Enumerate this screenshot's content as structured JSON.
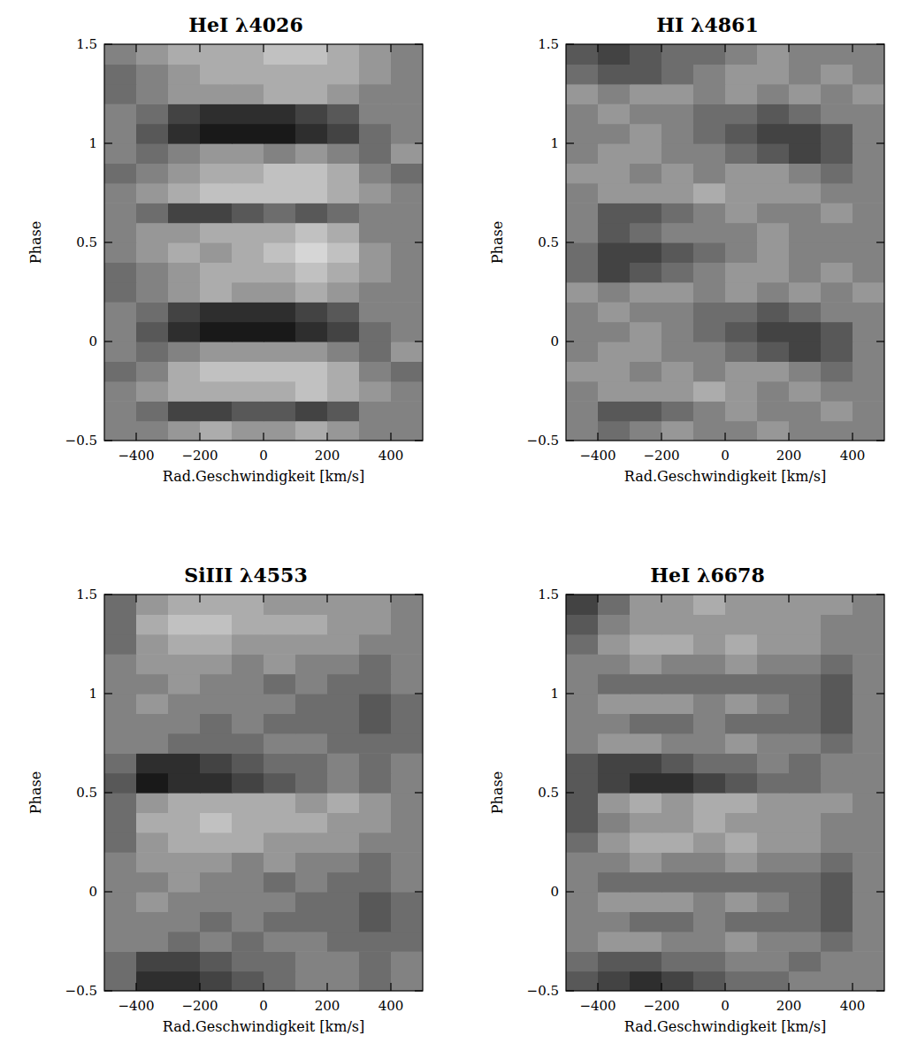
{
  "chart_data": [
    {
      "type": "heatmap",
      "title": "HeI λ4026",
      "x_label": "Rad.Geschwindigkeit [km/s]",
      "y_label": "Phase",
      "xlim": [
        -500,
        500
      ],
      "ylim": [
        -0.5,
        1.5
      ],
      "xticks": [
        {
          "value": -400,
          "label": "−400"
        },
        {
          "value": -200,
          "label": "−200"
        },
        0,
        200,
        400
      ],
      "yticks": [
        {
          "value": -0.5,
          "label": "−0.5"
        },
        0,
        0.5,
        1,
        1.5
      ],
      "x_bins": [
        -500,
        -400,
        -300,
        -200,
        -100,
        0,
        100,
        200,
        300,
        400,
        500
      ],
      "y_bins": [
        -0.5,
        -0.4,
        -0.3,
        -0.2,
        -0.1,
        0,
        0.1,
        0.2,
        0.3,
        0.4,
        0.5,
        0.6,
        0.7,
        0.8,
        0.9,
        1,
        1.1,
        1.2,
        1.3,
        1.4,
        1.5
      ],
      "zlim": [
        -5,
        5
      ],
      "cells": [
        [
          0,
          0,
          1,
          2,
          1,
          1,
          2,
          1,
          0,
          0
        ],
        [
          0,
          -1,
          -3,
          -3,
          -2,
          -2,
          -3,
          -2,
          0,
          0
        ],
        [
          0,
          1,
          2,
          2,
          2,
          2,
          3,
          2,
          1,
          0
        ],
        [
          -1,
          0,
          2,
          3,
          3,
          3,
          3,
          2,
          0,
          -1
        ],
        [
          0,
          -1,
          0,
          1,
          1,
          1,
          1,
          0,
          -1,
          1
        ],
        [
          0,
          -2,
          -4,
          -5,
          -5,
          -5,
          -4,
          -3,
          -1,
          0
        ],
        [
          0,
          -1,
          -3,
          -4,
          -4,
          -4,
          -3,
          -2,
          0,
          0
        ],
        [
          -1,
          0,
          1,
          2,
          1,
          1,
          2,
          1,
          0,
          0
        ],
        [
          -1,
          0,
          1,
          2,
          2,
          2,
          3,
          2,
          1,
          0
        ],
        [
          0,
          1,
          2,
          1,
          2,
          3,
          4,
          3,
          1,
          0
        ],
        [
          0,
          1,
          1,
          2,
          2,
          2,
          3,
          2,
          0,
          0
        ],
        [
          0,
          -1,
          -3,
          -3,
          -2,
          -1,
          -2,
          -1,
          0,
          0
        ],
        [
          0,
          1,
          2,
          3,
          3,
          3,
          3,
          2,
          1,
          0
        ],
        [
          -1,
          0,
          1,
          2,
          2,
          3,
          3,
          2,
          0,
          -1
        ],
        [
          0,
          -1,
          0,
          1,
          1,
          0,
          1,
          0,
          -1,
          1
        ],
        [
          0,
          -2,
          -4,
          -5,
          -5,
          -5,
          -4,
          -3,
          -1,
          0
        ],
        [
          0,
          -1,
          -3,
          -4,
          -4,
          -4,
          -3,
          -2,
          0,
          0
        ],
        [
          -1,
          0,
          1,
          1,
          1,
          2,
          2,
          1,
          0,
          0
        ],
        [
          -1,
          0,
          1,
          2,
          2,
          2,
          2,
          2,
          1,
          0
        ],
        [
          0,
          1,
          2,
          2,
          2,
          3,
          3,
          2,
          1,
          0
        ]
      ]
    },
    {
      "type": "heatmap",
      "title": "HI λ4861",
      "x_label": "Rad.Geschwindigkeit [km/s]",
      "y_label": "Phase",
      "xlim": [
        -500,
        500
      ],
      "ylim": [
        -0.5,
        1.5
      ],
      "xticks": [
        {
          "value": -400,
          "label": "−400"
        },
        {
          "value": -200,
          "label": "−200"
        },
        0,
        200,
        400
      ],
      "yticks": [
        {
          "value": -0.5,
          "label": "−0.5"
        },
        0,
        0.5,
        1,
        1.5
      ],
      "x_bins": [
        -500,
        -400,
        -300,
        -200,
        -100,
        0,
        100,
        200,
        300,
        400,
        500
      ],
      "y_bins": [
        -0.5,
        -0.4,
        -0.3,
        -0.2,
        -0.1,
        0,
        0.1,
        0.2,
        0.3,
        0.4,
        0.5,
        0.6,
        0.7,
        0.8,
        0.9,
        1,
        1.1,
        1.2,
        1.3,
        1.4,
        1.5
      ],
      "zlim": [
        -5,
        5
      ],
      "cells": [
        [
          0,
          -1,
          0,
          1,
          0,
          0,
          1,
          0,
          0,
          0
        ],
        [
          0,
          -2,
          -2,
          -1,
          0,
          1,
          0,
          0,
          1,
          0
        ],
        [
          0,
          1,
          1,
          1,
          2,
          1,
          0,
          1,
          0,
          0
        ],
        [
          1,
          1,
          0,
          1,
          0,
          1,
          1,
          0,
          -1,
          0
        ],
        [
          0,
          1,
          1,
          0,
          0,
          -1,
          -2,
          -3,
          -2,
          0
        ],
        [
          0,
          0,
          1,
          0,
          -1,
          -2,
          -3,
          -3,
          -2,
          0
        ],
        [
          0,
          1,
          0,
          0,
          -1,
          -1,
          -2,
          -1,
          0,
          0
        ],
        [
          1,
          0,
          1,
          1,
          0,
          1,
          0,
          1,
          0,
          1
        ],
        [
          -1,
          -3,
          -2,
          -1,
          0,
          1,
          1,
          0,
          1,
          0
        ],
        [
          -1,
          -3,
          -3,
          -2,
          -1,
          0,
          1,
          0,
          0,
          0
        ],
        [
          0,
          -2,
          -1,
          0,
          0,
          0,
          1,
          0,
          0,
          0
        ],
        [
          0,
          -2,
          -2,
          -1,
          0,
          1,
          0,
          0,
          1,
          0
        ],
        [
          0,
          1,
          1,
          1,
          2,
          1,
          1,
          1,
          0,
          0
        ],
        [
          1,
          1,
          0,
          1,
          0,
          1,
          1,
          0,
          -1,
          0
        ],
        [
          0,
          1,
          1,
          0,
          0,
          -1,
          -2,
          -3,
          -2,
          0
        ],
        [
          0,
          0,
          1,
          0,
          -1,
          -2,
          -3,
          -3,
          -2,
          0
        ],
        [
          0,
          1,
          0,
          0,
          -1,
          -1,
          -2,
          -1,
          0,
          0
        ],
        [
          1,
          0,
          1,
          1,
          0,
          1,
          0,
          1,
          0,
          1
        ],
        [
          -1,
          -2,
          -2,
          -1,
          0,
          1,
          1,
          0,
          1,
          0
        ],
        [
          -2,
          -3,
          -2,
          -1,
          -1,
          0,
          1,
          0,
          0,
          0
        ]
      ]
    },
    {
      "type": "heatmap",
      "title": "SiIII λ4553",
      "x_label": "Rad.Geschwindigkeit [km/s]",
      "y_label": "Phase",
      "xlim": [
        -500,
        500
      ],
      "ylim": [
        -0.5,
        1.5
      ],
      "xticks": [
        {
          "value": -400,
          "label": "−400"
        },
        {
          "value": -200,
          "label": "−200"
        },
        0,
        200,
        400
      ],
      "yticks": [
        {
          "value": -0.5,
          "label": "−0.5"
        },
        0,
        0.5,
        1,
        1.5
      ],
      "x_bins": [
        -500,
        -400,
        -300,
        -200,
        -100,
        0,
        100,
        200,
        300,
        400,
        500
      ],
      "y_bins": [
        -0.5,
        -0.4,
        -0.3,
        -0.2,
        -0.1,
        0,
        0.1,
        0.2,
        0.3,
        0.4,
        0.5,
        0.6,
        0.7,
        0.8,
        0.9,
        1,
        1.1,
        1.2,
        1.3,
        1.4,
        1.5
      ],
      "zlim": [
        -5,
        5
      ],
      "cells": [
        [
          -1,
          -4,
          -4,
          -3,
          -2,
          -1,
          0,
          0,
          -1,
          0
        ],
        [
          -1,
          -3,
          -3,
          -2,
          -1,
          -1,
          0,
          0,
          -1,
          0
        ],
        [
          0,
          0,
          -1,
          0,
          -1,
          0,
          0,
          -1,
          -1,
          -1
        ],
        [
          0,
          0,
          0,
          -1,
          0,
          -1,
          -1,
          -1,
          -2,
          -1
        ],
        [
          0,
          1,
          0,
          0,
          0,
          0,
          -1,
          -1,
          -2,
          -1
        ],
        [
          0,
          0,
          1,
          0,
          0,
          -1,
          0,
          -1,
          -1,
          0
        ],
        [
          0,
          1,
          1,
          1,
          0,
          1,
          0,
          0,
          -1,
          0
        ],
        [
          -1,
          1,
          2,
          2,
          2,
          1,
          1,
          1,
          0,
          0
        ],
        [
          -1,
          2,
          2,
          3,
          2,
          2,
          2,
          1,
          1,
          0
        ],
        [
          -1,
          1,
          2,
          2,
          2,
          2,
          1,
          2,
          1,
          0
        ],
        [
          -2,
          -5,
          -4,
          -4,
          -3,
          -2,
          -1,
          0,
          -1,
          0
        ],
        [
          -1,
          -4,
          -4,
          -3,
          -2,
          -1,
          -1,
          0,
          -1,
          0
        ],
        [
          0,
          0,
          -1,
          -1,
          -1,
          0,
          0,
          -1,
          -1,
          -1
        ],
        [
          0,
          0,
          0,
          -1,
          0,
          -1,
          -1,
          -1,
          -2,
          -1
        ],
        [
          0,
          1,
          0,
          0,
          0,
          0,
          -1,
          -1,
          -2,
          -1
        ],
        [
          0,
          0,
          1,
          0,
          0,
          -1,
          0,
          -1,
          -1,
          0
        ],
        [
          0,
          1,
          1,
          1,
          0,
          1,
          0,
          0,
          -1,
          0
        ],
        [
          -1,
          1,
          2,
          2,
          1,
          1,
          1,
          1,
          0,
          0
        ],
        [
          -1,
          2,
          3,
          3,
          2,
          2,
          2,
          1,
          1,
          0
        ],
        [
          -1,
          1,
          2,
          2,
          2,
          1,
          1,
          1,
          1,
          0
        ]
      ]
    },
    {
      "type": "heatmap",
      "title": "HeI λ6678",
      "x_label": "Rad.Geschwindigkeit [km/s]",
      "y_label": "Phase",
      "xlim": [
        -500,
        500
      ],
      "ylim": [
        -0.5,
        1.5
      ],
      "xticks": [
        {
          "value": -400,
          "label": "−400"
        },
        {
          "value": -200,
          "label": "−200"
        },
        0,
        200,
        400
      ],
      "yticks": [
        {
          "value": -0.5,
          "label": "−0.5"
        },
        0,
        0.5,
        1,
        1.5
      ],
      "x_bins": [
        -500,
        -400,
        -300,
        -200,
        -100,
        0,
        100,
        200,
        300,
        400,
        500
      ],
      "y_bins": [
        -0.5,
        -0.4,
        -0.3,
        -0.2,
        -0.1,
        0,
        0.1,
        0.2,
        0.3,
        0.4,
        0.5,
        0.6,
        0.7,
        0.8,
        0.9,
        1,
        1.1,
        1.2,
        1.3,
        1.4,
        1.5
      ],
      "zlim": [
        -5,
        5
      ],
      "cells": [
        [
          -2,
          -3,
          -4,
          -3,
          -2,
          -1,
          -1,
          0,
          0,
          0
        ],
        [
          -1,
          -2,
          -2,
          -1,
          -1,
          0,
          0,
          -1,
          0,
          0
        ],
        [
          0,
          1,
          1,
          0,
          0,
          1,
          0,
          0,
          -1,
          0
        ],
        [
          0,
          0,
          -1,
          -1,
          0,
          -1,
          -1,
          -1,
          -2,
          0
        ],
        [
          0,
          1,
          1,
          1,
          0,
          1,
          0,
          -1,
          -2,
          0
        ],
        [
          0,
          -1,
          -1,
          -1,
          -1,
          -1,
          -1,
          -1,
          -2,
          0
        ],
        [
          0,
          0,
          1,
          0,
          0,
          1,
          0,
          0,
          -1,
          0
        ],
        [
          -1,
          1,
          2,
          2,
          1,
          2,
          1,
          1,
          0,
          0
        ],
        [
          -2,
          0,
          1,
          1,
          2,
          1,
          1,
          1,
          0,
          0
        ],
        [
          -2,
          1,
          2,
          1,
          2,
          2,
          1,
          1,
          1,
          0
        ],
        [
          -2,
          -3,
          -4,
          -4,
          -3,
          -2,
          -1,
          -1,
          0,
          0
        ],
        [
          -2,
          -3,
          -3,
          -2,
          -1,
          -1,
          0,
          -1,
          0,
          0
        ],
        [
          0,
          1,
          1,
          0,
          0,
          1,
          0,
          0,
          -1,
          0
        ],
        [
          0,
          0,
          -1,
          -1,
          0,
          -1,
          -1,
          -1,
          -2,
          0
        ],
        [
          0,
          1,
          1,
          1,
          0,
          1,
          0,
          -1,
          -2,
          0
        ],
        [
          0,
          -1,
          -1,
          -1,
          -1,
          -1,
          -1,
          -1,
          -2,
          0
        ],
        [
          0,
          0,
          1,
          0,
          0,
          1,
          0,
          0,
          -1,
          0
        ],
        [
          -1,
          1,
          2,
          2,
          1,
          2,
          1,
          1,
          0,
          0
        ],
        [
          -2,
          0,
          1,
          1,
          1,
          1,
          1,
          1,
          0,
          0
        ],
        [
          -3,
          -1,
          1,
          1,
          2,
          1,
          1,
          1,
          1,
          0
        ]
      ]
    }
  ]
}
